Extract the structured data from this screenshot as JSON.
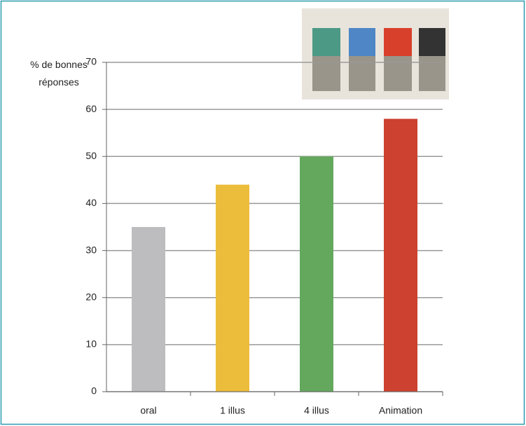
{
  "chart_data": {
    "type": "bar",
    "y_label": "% de bonnes réponses",
    "categories": [
      "oral",
      "1 illus",
      "4 illus",
      "Animation"
    ],
    "values": [
      35,
      44,
      50,
      58
    ],
    "colors": [
      "#bdbdbf",
      "#ecbd3b",
      "#63a85c",
      "#cc412f"
    ],
    "ylim": [
      0,
      70
    ],
    "yticks": [
      0,
      10,
      20,
      30,
      40,
      50,
      60,
      70
    ],
    "grid": true
  }
}
